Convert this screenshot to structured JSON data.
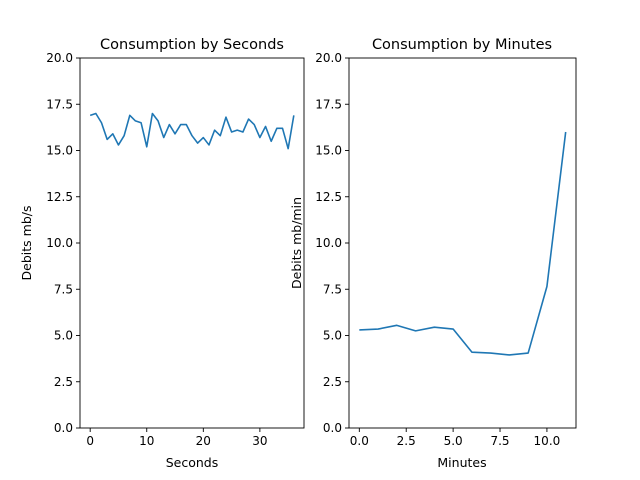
{
  "chart_data": [
    {
      "type": "line",
      "title": "Consumption by Seconds",
      "xlabel": "Seconds",
      "ylabel": "Debits mb/s",
      "xlim": [
        -1.8,
        37.8
      ],
      "ylim": [
        0,
        20
      ],
      "xticks": [
        0,
        10,
        20,
        30
      ],
      "xtick_labels": [
        "0",
        "10",
        "20",
        "30"
      ],
      "yticks": [
        0,
        2.5,
        5,
        7.5,
        10,
        12.5,
        15,
        17.5,
        20
      ],
      "ytick_labels": [
        "0.0",
        "2.5",
        "5.0",
        "7.5",
        "10.0",
        "12.5",
        "15.0",
        "17.5",
        "20.0"
      ],
      "grid": false,
      "color": "#1f77b4",
      "x": [
        0,
        1,
        2,
        3,
        4,
        5,
        6,
        7,
        8,
        9,
        10,
        11,
        12,
        13,
        14,
        15,
        16,
        17,
        18,
        19,
        20,
        21,
        22,
        23,
        24,
        25,
        26,
        27,
        28,
        29,
        30,
        31,
        32,
        33,
        34,
        35,
        36
      ],
      "y": [
        16.9,
        17.0,
        16.5,
        15.6,
        15.9,
        15.3,
        15.8,
        16.9,
        16.6,
        16.5,
        15.2,
        17.0,
        16.6,
        15.7,
        16.4,
        15.9,
        16.4,
        16.4,
        15.8,
        15.4,
        15.7,
        15.3,
        16.1,
        15.8,
        16.8,
        16.0,
        16.1,
        16.0,
        16.7,
        16.4,
        15.7,
        16.3,
        15.5,
        16.2,
        16.2,
        15.1,
        16.9
      ]
    },
    {
      "type": "line",
      "title": "Consumption by Minutes",
      "xlabel": "Minutes",
      "ylabel": "Debits mb/min",
      "xlim": [
        -0.55,
        11.55
      ],
      "ylim": [
        0,
        20
      ],
      "xticks": [
        0,
        2.5,
        5,
        7.5,
        10
      ],
      "xtick_labels": [
        "0.0",
        "2.5",
        "5.0",
        "7.5",
        "10.0"
      ],
      "yticks": [
        0,
        2.5,
        5,
        7.5,
        10,
        12.5,
        15,
        17.5,
        20
      ],
      "ytick_labels": [
        "0.0",
        "2.5",
        "5.0",
        "7.5",
        "10.0",
        "12.5",
        "15.0",
        "17.5",
        "20.0"
      ],
      "grid": false,
      "color": "#1f77b4",
      "x": [
        0,
        1,
        2,
        3,
        4,
        5,
        6,
        7,
        8,
        9,
        10,
        11
      ],
      "y": [
        5.3,
        5.35,
        5.55,
        5.25,
        5.45,
        5.35,
        4.1,
        4.05,
        3.95,
        4.05,
        7.65,
        16.0
      ]
    }
  ]
}
